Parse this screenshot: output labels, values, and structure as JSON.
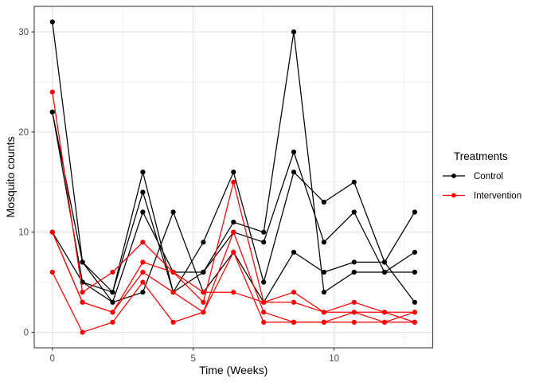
{
  "chart_data": {
    "type": "line",
    "title": "",
    "xlabel": "Time (Weeks)",
    "ylabel": "Mosquito counts",
    "x_ticks": [
      0,
      5,
      10
    ],
    "x_minor_ticks": [
      2.5,
      7.5,
      12.5
    ],
    "y_ticks": [
      0,
      10,
      20,
      30
    ],
    "y_minor_ticks": [
      5,
      15,
      25
    ],
    "xlim": [
      -0.643,
      13.5
    ],
    "ylim": [
      -1.55,
      32.55
    ],
    "grid": true,
    "legend_position": "right",
    "x_weeks": [
      0,
      1.07,
      2.14,
      3.21,
      4.29,
      5.36,
      6.43,
      7.5,
      8.57,
      9.64,
      10.71,
      11.79,
      12.86
    ],
    "series": [
      {
        "name": "Control-1",
        "group": "Control",
        "color": "#000000",
        "values": [
          31,
          7,
          4,
          16,
          4,
          9,
          16,
          5,
          16,
          13,
          15,
          7,
          12
        ]
      },
      {
        "name": "Control-2",
        "group": "Control",
        "color": "#000000",
        "values": [
          22,
          7,
          3,
          12,
          6,
          6,
          11,
          10,
          30,
          4,
          6,
          6,
          8
        ]
      },
      {
        "name": "Control-3",
        "group": "Control",
        "color": "#000000",
        "values": [
          22,
          5,
          4,
          14,
          4,
          6,
          10,
          9,
          18,
          9,
          12,
          6,
          6
        ]
      },
      {
        "name": "Control-4",
        "group": "Control",
        "color": "#000000",
        "values": [
          10,
          5,
          3,
          4,
          12,
          4,
          8,
          3,
          8,
          6,
          7,
          7,
          3
        ]
      },
      {
        "name": "Intervention-1",
        "group": "Intervention",
        "color": "#ff0000",
        "values": [
          24,
          4,
          6,
          9,
          6,
          4,
          4,
          3,
          4,
          2,
          3,
          2,
          2
        ]
      },
      {
        "name": "Intervention-2",
        "group": "Intervention",
        "color": "#ff0000",
        "values": [
          10,
          3,
          2,
          7,
          6,
          3,
          15,
          3,
          3,
          2,
          2,
          2,
          1
        ]
      },
      {
        "name": "Intervention-3",
        "group": "Intervention",
        "color": "#ff0000",
        "values": [
          10,
          3,
          2,
          6,
          4,
          2,
          10,
          2,
          1,
          1,
          2,
          1,
          2
        ]
      },
      {
        "name": "Intervention-4",
        "group": "Intervention",
        "color": "#ff0000",
        "values": [
          6,
          0,
          1,
          5,
          1,
          2,
          8,
          1,
          1,
          1,
          1,
          1,
          1
        ]
      }
    ],
    "legend": {
      "title": "Treatments",
      "entries": [
        {
          "label": "Control",
          "color": "#000000"
        },
        {
          "label": "Intervention",
          "color": "#ff0000"
        }
      ]
    },
    "colors": {
      "grid_major": "#e3e3e3",
      "grid_minor": "#f1f1f1",
      "panel_border": "#4d4d4d",
      "tick_label": "#4d4d4d",
      "tick_mark": "#333333",
      "axis_title": "#000000",
      "legend_text": "#000000",
      "background": "#ffffff"
    }
  }
}
